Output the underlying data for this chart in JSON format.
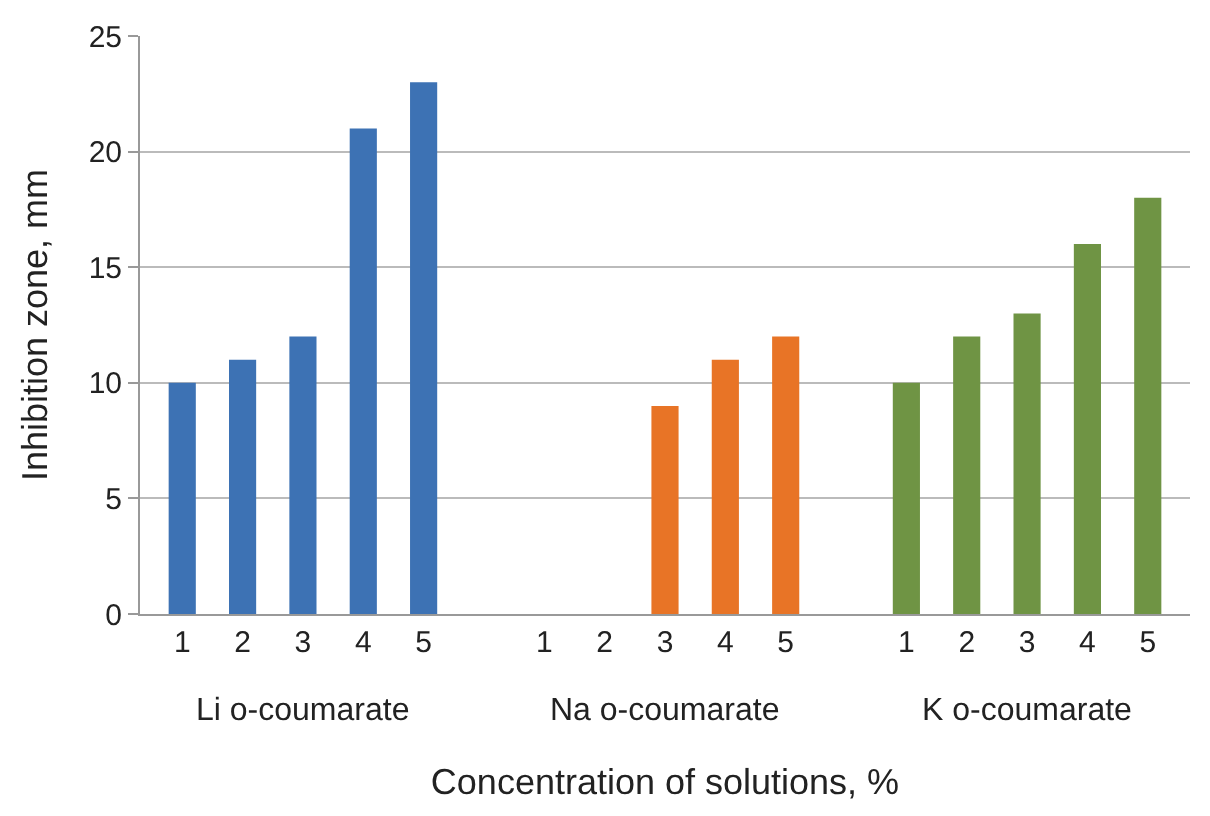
{
  "chart_data": {
    "type": "bar",
    "xlabel": "Concentration of solutions, %",
    "ylabel": "Inhibition zone, mm",
    "categories": [
      "1",
      "2",
      "3",
      "4",
      "5",
      null,
      "1",
      "2",
      "3",
      "4",
      "5",
      null,
      "1",
      "2",
      "3",
      "4",
      "5"
    ],
    "series": [
      {
        "name": "Li o-coumarate",
        "color": "#3d72b4",
        "values": [
          10,
          11,
          12,
          21,
          23,
          null,
          null,
          null,
          null,
          null,
          null,
          null,
          null,
          null,
          null,
          null,
          null
        ]
      },
      {
        "name": "Na o-coumarate",
        "color": "#e87426",
        "values": [
          null,
          null,
          null,
          null,
          null,
          null,
          0,
          0,
          9,
          11,
          12,
          null,
          null,
          null,
          null,
          null,
          null
        ]
      },
      {
        "name": "K o-coumarate",
        "color": "#6f9444",
        "values": [
          null,
          null,
          null,
          null,
          null,
          null,
          null,
          null,
          null,
          null,
          null,
          null,
          10,
          12,
          13,
          16,
          18
        ]
      }
    ],
    "ylim": [
      0,
      25
    ],
    "yticks": [
      0,
      5,
      10,
      15,
      20,
      25
    ],
    "grid": "y"
  }
}
